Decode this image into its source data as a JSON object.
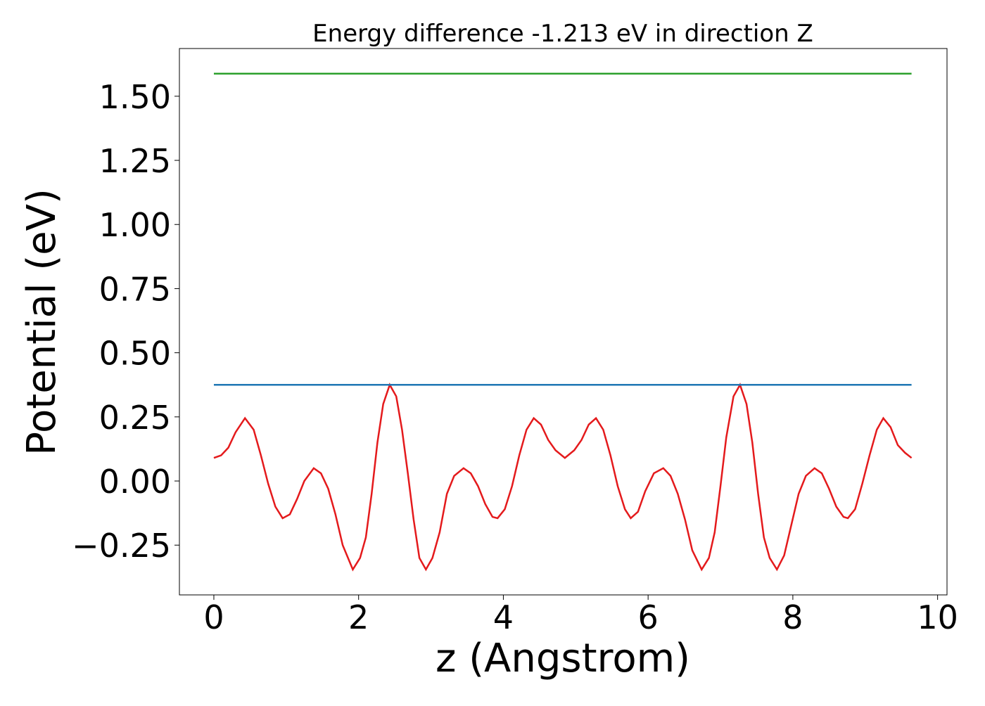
{
  "chart_data": {
    "type": "line",
    "title": "Energy difference -1.213 eV in direction Z",
    "x_label": "z (Angstrom)",
    "y_label": "Potential (eV)",
    "xlim": [
      -0.476,
      10.13
    ],
    "ylim": [
      -0.444,
      1.686
    ],
    "xticks": [
      0,
      2,
      4,
      6,
      8,
      10
    ],
    "yticks": [
      {
        "value": -0.25,
        "label": "−0.25"
      },
      {
        "value": 0,
        "label": "0.00"
      },
      {
        "value": 0.25,
        "label": "0.25"
      },
      {
        "value": 0.5,
        "label": "0.50"
      },
      {
        "value": 0.75,
        "label": "0.75"
      },
      {
        "value": 1.0,
        "label": "1.00"
      },
      {
        "value": 1.25,
        "label": "1.25"
      },
      {
        "value": 1.5,
        "label": "1.50"
      }
    ],
    "series": [
      {
        "color": "#e41a1c",
        "x": [
          0,
          0.1,
          0.2,
          0.3,
          0.43,
          0.55,
          0.65,
          0.75,
          0.85,
          0.95,
          1.05,
          1.15,
          1.25,
          1.38,
          1.48,
          1.58,
          1.68,
          1.78,
          1.92,
          2.02,
          2.1,
          2.18,
          2.26,
          2.34,
          2.43,
          2.52,
          2.6,
          2.68,
          2.76,
          2.84,
          2.93,
          3.02,
          3.12,
          3.22,
          3.32,
          3.45,
          3.55,
          3.65,
          3.75,
          3.85,
          3.92,
          4.02,
          4.12,
          4.22,
          4.32,
          4.42,
          4.52,
          4.62,
          4.72,
          4.85,
          4.98,
          5.08,
          5.18,
          5.28,
          5.38,
          5.48,
          5.58,
          5.68,
          5.76,
          5.86,
          5.96,
          6.08,
          6.21,
          6.31,
          6.41,
          6.51,
          6.61,
          6.74,
          6.84,
          6.92,
          7.0,
          7.08,
          7.18,
          7.27,
          7.36,
          7.44,
          7.52,
          7.6,
          7.68,
          7.78,
          7.88,
          7.98,
          8.08,
          8.18,
          8.3,
          8.4,
          8.5,
          8.6,
          8.7,
          8.76,
          8.86,
          8.96,
          9.06,
          9.16,
          9.25,
          9.35,
          9.45,
          9.55,
          9.64
        ],
        "values": [
          0.09,
          0.1,
          0.13,
          0.19,
          0.245,
          0.2,
          0.1,
          -0.01,
          -0.1,
          -0.145,
          -0.13,
          -0.07,
          0.0,
          0.05,
          0.03,
          -0.03,
          -0.13,
          -0.25,
          -0.345,
          -0.3,
          -0.22,
          -0.05,
          0.15,
          0.3,
          0.375,
          0.33,
          0.2,
          0.03,
          -0.15,
          -0.3,
          -0.345,
          -0.3,
          -0.2,
          -0.05,
          0.02,
          0.05,
          0.03,
          -0.02,
          -0.09,
          -0.14,
          -0.145,
          -0.11,
          -0.02,
          0.1,
          0.2,
          0.245,
          0.22,
          0.16,
          0.12,
          0.09,
          0.12,
          0.16,
          0.22,
          0.245,
          0.2,
          0.1,
          -0.02,
          -0.11,
          -0.145,
          -0.12,
          -0.04,
          0.03,
          0.05,
          0.02,
          -0.05,
          -0.15,
          -0.27,
          -0.345,
          -0.3,
          -0.2,
          -0.02,
          0.17,
          0.33,
          0.375,
          0.3,
          0.15,
          -0.05,
          -0.22,
          -0.3,
          -0.345,
          -0.29,
          -0.17,
          -0.05,
          0.02,
          0.05,
          0.03,
          -0.03,
          -0.1,
          -0.14,
          -0.145,
          -0.11,
          -0.01,
          0.1,
          0.2,
          0.245,
          0.21,
          0.14,
          0.11,
          0.09
        ]
      },
      {
        "color": "#1f77b4",
        "x": [
          0,
          9.64
        ],
        "values": [
          0.375,
          0.375
        ]
      },
      {
        "color": "#2ca02c",
        "x": [
          0,
          9.64
        ],
        "values": [
          1.588,
          1.588
        ]
      }
    ]
  }
}
